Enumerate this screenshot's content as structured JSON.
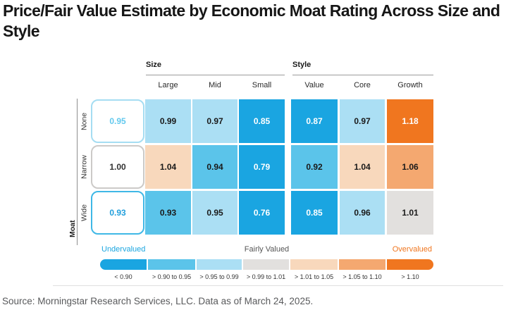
{
  "title": "Price/Fair Value Estimate by Economic Moat Rating Across Size and Style",
  "source": "Source: Morningstar Research Services, LLC. Data as of March 24, 2025.",
  "chart_data": {
    "type": "heatmap",
    "title": "Price/Fair Value Estimate by Economic Moat Rating Across Size and Style",
    "row_axis_label": "Moat",
    "row_categories": [
      "None",
      "Narrow",
      "Wide"
    ],
    "column_groups": [
      {
        "label": "Size",
        "columns": [
          "Large",
          "Mid",
          "Small"
        ]
      },
      {
        "label": "Style",
        "columns": [
          "Value",
          "Core",
          "Growth"
        ]
      }
    ],
    "overall_values": [
      "0.95",
      "1.00",
      "0.93"
    ],
    "size_values": [
      [
        "0.99",
        "0.97",
        "0.85"
      ],
      [
        "1.04",
        "0.94",
        "0.79"
      ],
      [
        "0.93",
        "0.95",
        "0.76"
      ]
    ],
    "style_values": [
      [
        "0.87",
        "0.97",
        "1.18"
      ],
      [
        "0.92",
        "1.04",
        "1.06"
      ],
      [
        "0.85",
        "0.96",
        "1.01"
      ]
    ],
    "legend": {
      "sections": [
        {
          "label": "Undervalued",
          "color": "#1BA6E0"
        },
        {
          "label": "Fairly Valued",
          "color": "#555555"
        },
        {
          "label": "Overvalued",
          "color": "#F0761F"
        }
      ],
      "bins": [
        {
          "label": "< 0.90",
          "color": "#1AA5E1"
        },
        {
          "label": "> 0.90 to 0.95",
          "color": "#5BC4EA"
        },
        {
          "label": "> 0.95 to 0.99",
          "color": "#ABDFF4"
        },
        {
          "label": "> 0.99 to 1.01",
          "color": "#E2E0DE"
        },
        {
          "label": "> 1.01 to 1.05",
          "color": "#F8D8BC"
        },
        {
          "label": "> 1.05 to 1.10",
          "color": "#F4A870"
        },
        {
          "label": "> 1.10",
          "color": "#F0761F"
        }
      ]
    }
  }
}
